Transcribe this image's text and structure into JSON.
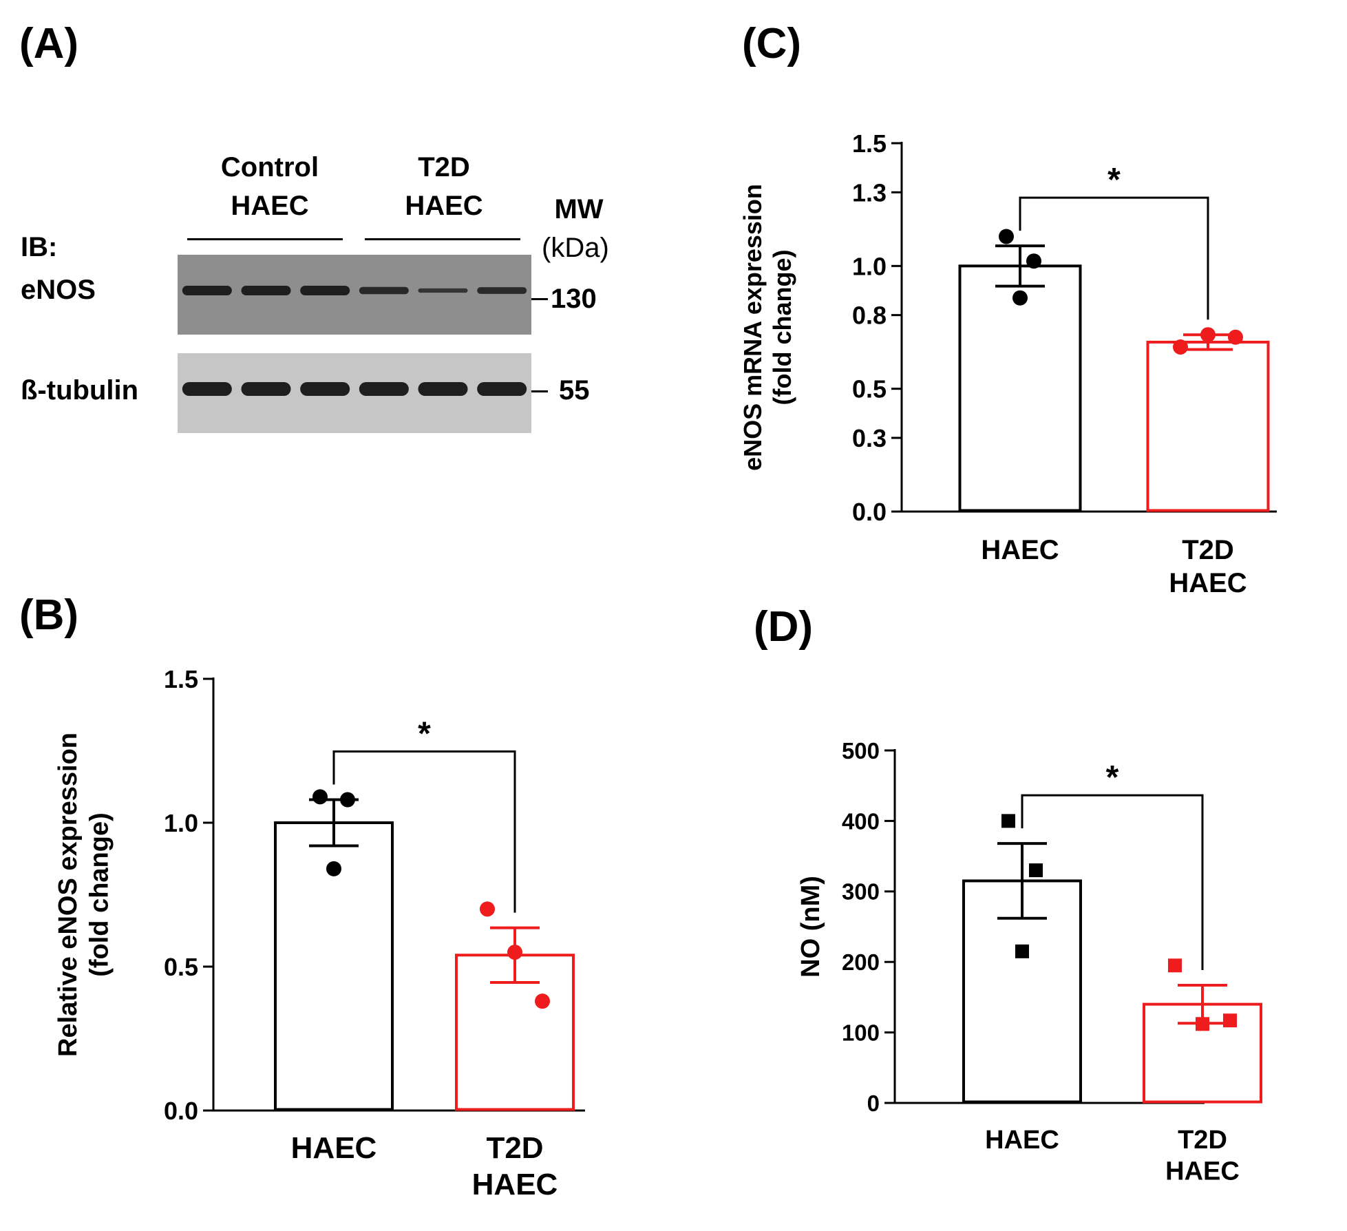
{
  "panels": {
    "a": "(A)",
    "b": "(B)",
    "c": "(C)",
    "d": "(D)"
  },
  "blot": {
    "group1": [
      "Control",
      "HAEC"
    ],
    "group2": [
      "T2D",
      "HAEC"
    ],
    "mw": [
      "MW",
      "(kDa)"
    ],
    "ib": "IB:",
    "row1": {
      "label": "eNOS",
      "marker": "130",
      "intensities": [
        1.0,
        1.0,
        1.0,
        0.75,
        0.45,
        0.7
      ]
    },
    "row2": {
      "label": "ß-tubulin",
      "marker": "55",
      "intensities": [
        1.0,
        1.0,
        1.0,
        1.0,
        1.0,
        1.0
      ]
    }
  },
  "chart_data": [
    {
      "panel": "B",
      "type": "bar",
      "categories": [
        [
          "HAEC"
        ],
        [
          "T2D",
          "HAEC"
        ]
      ],
      "ylabel": [
        "Relative eNOS expression",
        "(fold change)"
      ],
      "ylim": [
        0,
        1.5
      ],
      "yticks": [
        0.0,
        0.5,
        1.0,
        1.5
      ],
      "tick_format": 1,
      "colors": [
        "#000000",
        "#ee1c1c"
      ],
      "values": [
        1.0,
        0.54
      ],
      "errors": [
        0.08,
        0.095
      ],
      "points": [
        [
          1.09,
          1.08,
          0.84
        ],
        [
          0.7,
          0.55,
          0.38
        ]
      ],
      "marker": "circle",
      "significance": "*"
    },
    {
      "panel": "C",
      "type": "bar",
      "categories": [
        [
          "HAEC"
        ],
        [
          "T2D",
          "HAEC"
        ]
      ],
      "ylabel": [
        "eNOS mRNA expression",
        "(fold change)"
      ],
      "ylim": [
        0,
        1.5
      ],
      "yticks": [
        0.0,
        0.3,
        0.5,
        0.8,
        1.0,
        1.3,
        1.5
      ],
      "tick_format": 1,
      "colors": [
        "#000000",
        "#ee1c1c"
      ],
      "values": [
        1.0,
        0.69
      ],
      "errors": [
        0.082,
        0.03
      ],
      "points": [
        [
          1.12,
          1.02,
          0.87
        ],
        [
          0.67,
          0.72,
          0.71
        ]
      ],
      "marker": "circle",
      "significance": "*"
    },
    {
      "panel": "D",
      "type": "bar",
      "categories": [
        [
          "HAEC"
        ],
        [
          "T2D",
          "HAEC"
        ]
      ],
      "ylabel": [
        "NO (nM)"
      ],
      "ylim": [
        0,
        500
      ],
      "yticks": [
        0,
        100,
        200,
        300,
        400,
        500
      ],
      "tick_format": 0,
      "colors": [
        "#000000",
        "#ee1c1c"
      ],
      "values": [
        315,
        140
      ],
      "errors": [
        53,
        27
      ],
      "points": [
        [
          400,
          330,
          215
        ],
        [
          195,
          112,
          117
        ]
      ],
      "marker": "square",
      "significance": "*"
    }
  ]
}
